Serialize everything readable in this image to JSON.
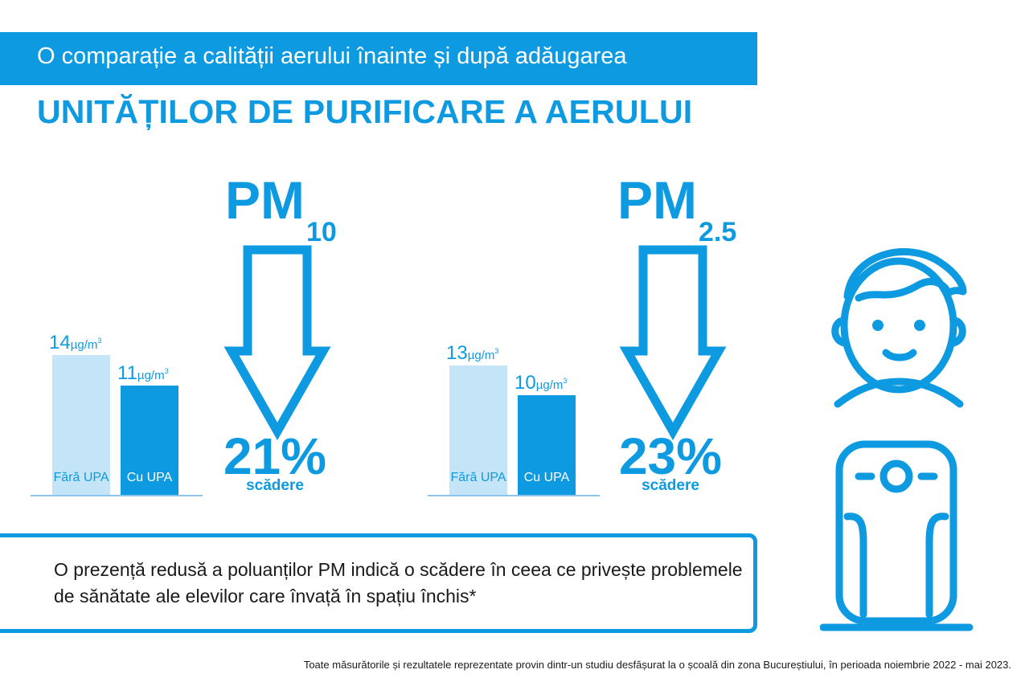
{
  "header": {
    "title": "O comparație a calității aerului înainte și după adăugarea",
    "subtitle": "UNITĂȚILOR DE PURIFICARE A AERULUI"
  },
  "colors": {
    "accent": "#0d9ae1",
    "bar_light": "#c4e5f7",
    "bar_dark": "#0d9ae1",
    "text_dark": "#1a1a1a"
  },
  "chart_data": [
    {
      "type": "bar",
      "pollutant_label": "PM",
      "pollutant_sub": "10",
      "categories": [
        "Fără UPA",
        "Cu UPA"
      ],
      "values": [
        14,
        11
      ],
      "unit": "µg/m",
      "unit_sup": "3",
      "ylim": [
        0,
        16
      ],
      "reduction_value": "21%",
      "reduction_label": "scădere",
      "grid": false
    },
    {
      "type": "bar",
      "pollutant_label": "PM",
      "pollutant_sub": "2.5",
      "categories": [
        "Fără UPA",
        "Cu UPA"
      ],
      "values": [
        13,
        10
      ],
      "unit": "µg/m",
      "unit_sup": "3",
      "ylim": [
        0,
        16
      ],
      "reduction_value": "23%",
      "reduction_label": "scădere",
      "grid": false
    }
  ],
  "message": "O prezență redusă a poluanților PM indică o scădere în ceea ce privește problemele de sănătate ale elevilor care învață în spațiu închis*",
  "footnote": "Toate măsurătorile și rezultatele reprezentate provin dintr-un studiu desfășurat la o școală din zona Bucureștiului, în perioada noiembrie 2022 - mai 2023.",
  "icons": {
    "person": "child-face-icon",
    "device": "air-purifier-icon",
    "arrow": "down-arrow-icon"
  }
}
